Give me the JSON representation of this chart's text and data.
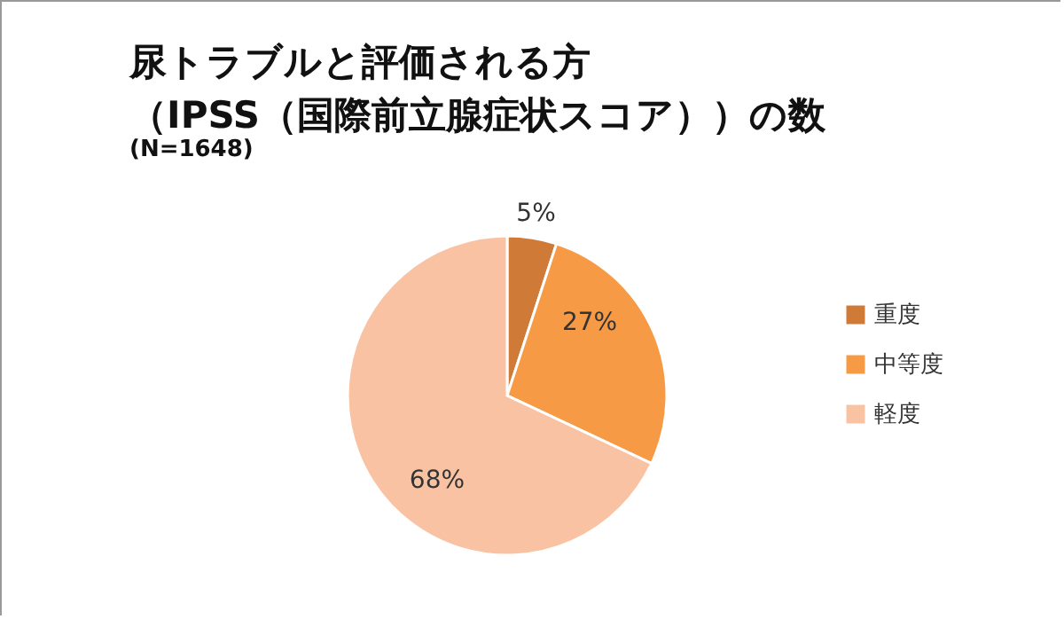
{
  "chart_data": {
    "type": "pie",
    "title": "尿トラブルと評価される方（IPSS（国際前立腺症状スコア））の数",
    "subtitle": "(N=1648)",
    "categories": [
      "重度",
      "中等度",
      "軽度"
    ],
    "values": [
      5,
      27,
      68
    ],
    "colors": [
      "#d07a38",
      "#f79a45",
      "#f9c3a3"
    ],
    "value_labels": [
      "5%",
      "27%",
      "68%"
    ],
    "legend": "right"
  }
}
